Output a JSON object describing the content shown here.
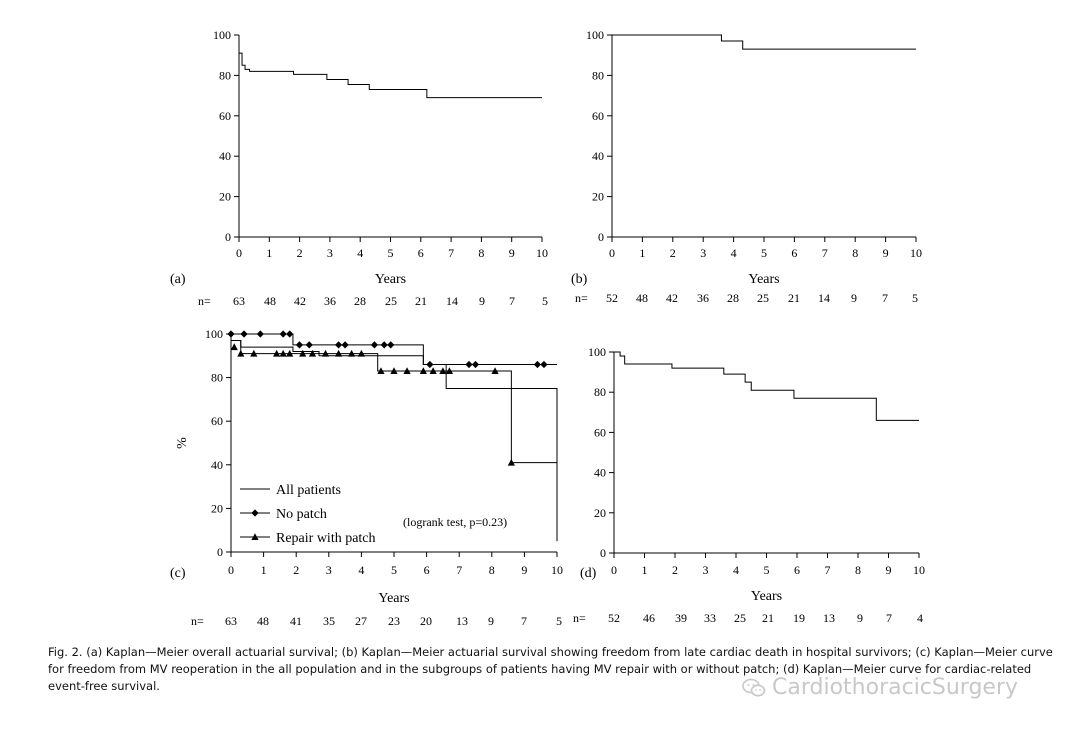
{
  "chart_data": [
    {
      "type": "line",
      "panel": "(a)",
      "xlabel": "Years",
      "ylabel": "",
      "xlim": [
        0,
        10
      ],
      "ylim": [
        0,
        100
      ],
      "xticks": [
        0,
        1,
        2,
        3,
        4,
        5,
        6,
        7,
        8,
        9,
        10
      ],
      "yticks": [
        0,
        20,
        40,
        60,
        80,
        100
      ],
      "n_label": "n=",
      "n_at_risk": [
        63,
        48,
        42,
        36,
        28,
        25,
        21,
        14,
        9,
        7,
        5
      ],
      "series": [
        {
          "style": "step",
          "marker": "none",
          "points": [
            [
              0,
              91
            ],
            [
              0.1,
              85
            ],
            [
              0.2,
              83
            ],
            [
              0.35,
              82
            ],
            [
              1.8,
              80.5
            ],
            [
              2.9,
              78
            ],
            [
              3.6,
              75.5
            ],
            [
              4.3,
              73
            ],
            [
              6.2,
              69
            ],
            [
              10,
              69
            ]
          ]
        }
      ]
    },
    {
      "type": "line",
      "panel": "(b)",
      "xlabel": "Years",
      "ylabel": "",
      "xlim": [
        0,
        10
      ],
      "ylim": [
        0,
        100
      ],
      "xticks": [
        0,
        1,
        2,
        3,
        4,
        5,
        6,
        7,
        8,
        9,
        10
      ],
      "yticks": [
        0,
        20,
        40,
        60,
        80,
        100
      ],
      "n_label": "n=",
      "n_at_risk": [
        52,
        48,
        42,
        36,
        28,
        25,
        21,
        14,
        9,
        7,
        5
      ],
      "series": [
        {
          "style": "step",
          "marker": "none",
          "points": [
            [
              0,
              100
            ],
            [
              3.6,
              97
            ],
            [
              4.3,
              93
            ],
            [
              10,
              93
            ]
          ]
        }
      ]
    },
    {
      "type": "line",
      "panel": "(c)",
      "xlabel": "Years",
      "ylabel": "%",
      "xlim": [
        0,
        10
      ],
      "ylim": [
        0,
        100
      ],
      "xticks": [
        0,
        1,
        2,
        3,
        4,
        5,
        6,
        7,
        8,
        9,
        10
      ],
      "yticks": [
        0,
        20,
        40,
        60,
        80,
        100
      ],
      "n_label": "n=",
      "n_at_risk": [
        63,
        48,
        41,
        35,
        27,
        23,
        20,
        13,
        9,
        7,
        5
      ],
      "annotation": "(logrank test, p=0.23)",
      "legend": [
        {
          "label": "All patients",
          "marker": "none"
        },
        {
          "label": "No patch",
          "marker": "diamond"
        },
        {
          "label": "Repair with patch",
          "marker": "triangle"
        }
      ],
      "series": [
        {
          "name": "All patients",
          "style": "step",
          "marker": "none",
          "points": [
            [
              0,
              97
            ],
            [
              0.3,
              94
            ],
            [
              1.9,
              92
            ],
            [
              2.7,
              90
            ],
            [
              5.9,
              86
            ],
            [
              6.6,
              75
            ],
            [
              9,
              75
            ],
            [
              10,
              75
            ],
            [
              10,
              5
            ]
          ]
        },
        {
          "name": "No patch",
          "style": "step",
          "marker": "diamond",
          "points": [
            [
              0,
              100
            ],
            [
              1.9,
              95
            ],
            [
              5.9,
              86
            ],
            [
              10,
              86
            ]
          ],
          "marks": [
            [
              0,
              100
            ],
            [
              0.4,
              100
            ],
            [
              0.9,
              100
            ],
            [
              1.6,
              100
            ],
            [
              1.8,
              100
            ],
            [
              2.1,
              95
            ],
            [
              2.4,
              95
            ],
            [
              3.3,
              95
            ],
            [
              3.5,
              95
            ],
            [
              4.4,
              95
            ],
            [
              4.7,
              95
            ],
            [
              4.9,
              95
            ],
            [
              6.1,
              86
            ],
            [
              7.3,
              86
            ],
            [
              7.5,
              86
            ],
            [
              9.4,
              86
            ],
            [
              9.6,
              86
            ]
          ]
        },
        {
          "name": "Repair with patch",
          "style": "step",
          "marker": "triangle",
          "points": [
            [
              0,
              97
            ],
            [
              0.3,
              91
            ],
            [
              4.5,
              83
            ],
            [
              8.6,
              41
            ],
            [
              10,
              41
            ]
          ],
          "marks": [
            [
              0.1,
              94
            ],
            [
              0.3,
              91
            ],
            [
              0.7,
              91
            ],
            [
              1.4,
              91
            ],
            [
              1.6,
              91
            ],
            [
              1.8,
              91
            ],
            [
              2.2,
              91
            ],
            [
              2.5,
              91
            ],
            [
              2.9,
              91
            ],
            [
              3.3,
              91
            ],
            [
              3.7,
              91
            ],
            [
              4.0,
              91
            ],
            [
              4.6,
              83
            ],
            [
              5.0,
              83
            ],
            [
              5.4,
              83
            ],
            [
              5.9,
              83
            ],
            [
              6.2,
              83
            ],
            [
              6.5,
              83
            ],
            [
              6.7,
              83
            ],
            [
              8.1,
              83
            ],
            [
              8.6,
              41
            ]
          ]
        }
      ]
    },
    {
      "type": "line",
      "panel": "(d)",
      "xlabel": "Years",
      "ylabel": "",
      "xlim": [
        0,
        10
      ],
      "ylim": [
        0,
        100
      ],
      "xticks": [
        0,
        1,
        2,
        3,
        4,
        5,
        6,
        7,
        8,
        9,
        10
      ],
      "yticks": [
        0,
        20,
        40,
        60,
        80,
        100
      ],
      "n_label": "n=",
      "n_at_risk": [
        52,
        46,
        39,
        33,
        25,
        21,
        19,
        13,
        9,
        7,
        4
      ],
      "series": [
        {
          "style": "step",
          "marker": "none",
          "points": [
            [
              0,
              100
            ],
            [
              0.2,
              98
            ],
            [
              0.35,
              94
            ],
            [
              1.9,
              92
            ],
            [
              3.6,
              89
            ],
            [
              4.3,
              85
            ],
            [
              4.5,
              81
            ],
            [
              5.9,
              77
            ],
            [
              8.6,
              66
            ],
            [
              10,
              66
            ]
          ]
        }
      ]
    }
  ],
  "caption": "Fig. 2. (a) Kaplan—Meier overall actuarial survival; (b) Kaplan—Meier actuarial survival showing freedom from late cardiac death in hospital survivors; (c) Kaplan—Meier curve for freedom from MV reoperation in the all population and in the subgroups of patients having MV repair with or without patch; (d) Kaplan—Meier curve for cardiac-related event-free survival.",
  "watermark": {
    "text": "CardiothoracicSurgery",
    "icon": "wechat-icon"
  }
}
